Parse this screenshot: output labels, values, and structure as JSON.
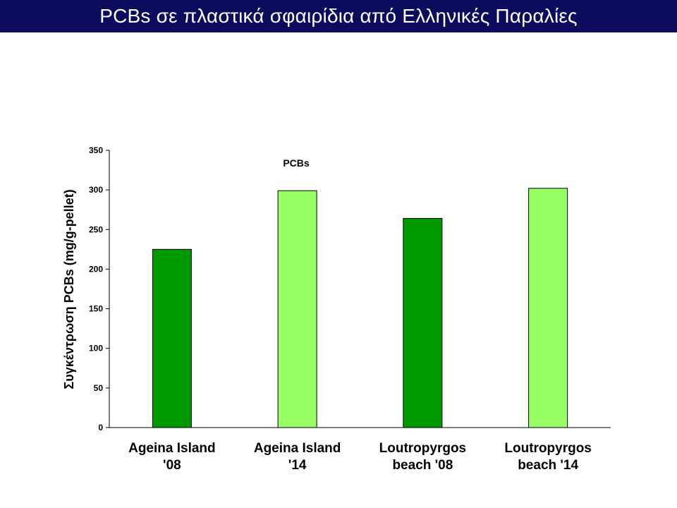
{
  "slide": {
    "title": "PCBs σε πλαστικά σφαιρίδια από Ελληνικές Παραλίες"
  },
  "chart_data": {
    "type": "bar",
    "title": "PCBs",
    "ylabel": "Συγκέντρωση PCBs (mg/g-pellet)",
    "xlabel": "",
    "ylim": [
      0,
      350
    ],
    "yticks": [
      0,
      50,
      100,
      150,
      200,
      250,
      300,
      350
    ],
    "categories": [
      [
        "Ageina Island",
        "'08"
      ],
      [
        "Ageina Island",
        "'14"
      ],
      [
        "Loutropyrgos",
        "beach '08"
      ],
      [
        "Loutropyrgos",
        "beach '14"
      ]
    ],
    "values": [
      225,
      299,
      264,
      302
    ],
    "colors": [
      "#009900",
      "#99ff66",
      "#009900",
      "#99ff66"
    ],
    "grid": false
  }
}
